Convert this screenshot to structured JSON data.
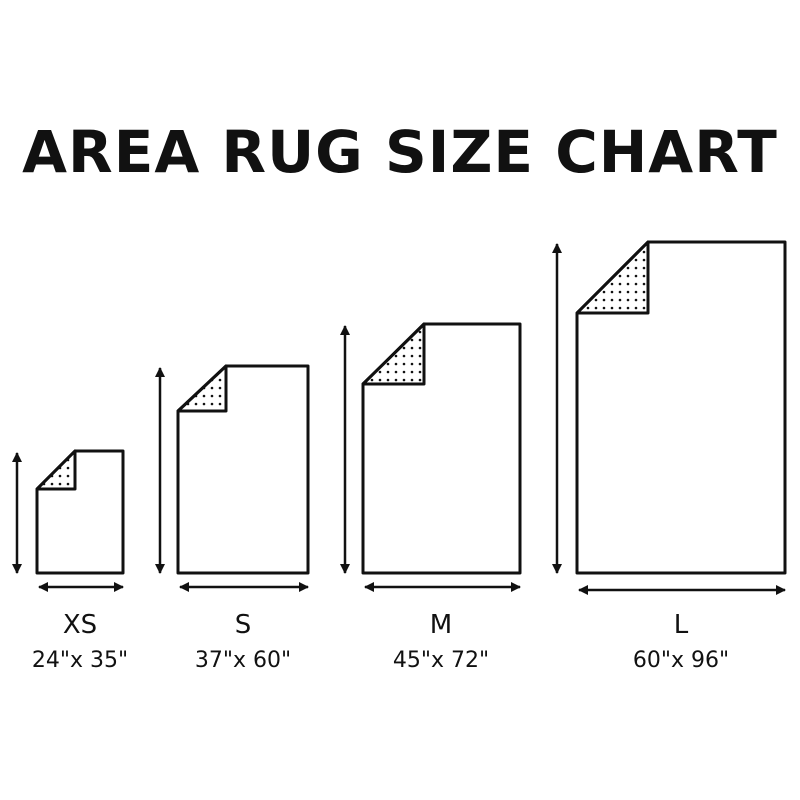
{
  "title": "AREA RUG SIZE CHART",
  "rugs": [
    {
      "size": "XS",
      "dimensions": "24\"x 35\""
    },
    {
      "size": "S",
      "dimensions": "37\"x 60\""
    },
    {
      "size": "M",
      "dimensions": "45\"x 72\""
    },
    {
      "size": "L",
      "dimensions": "60\"x 96\""
    }
  ],
  "colors": {
    "line": "#111111",
    "background": "#ffffff"
  }
}
